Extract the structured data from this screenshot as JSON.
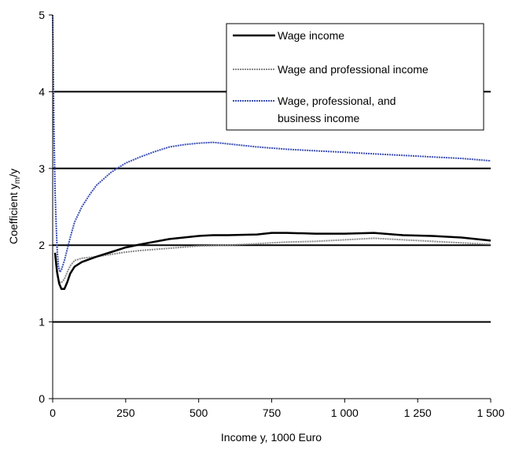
{
  "chart_data": {
    "type": "line",
    "xlabel": "Income y, 1000 Euro",
    "ylabel_main": "Coefficient y",
    "ylabel_sub": "m",
    "ylabel_tail": "/y",
    "xlim": [
      0,
      1500
    ],
    "ylim": [
      0,
      5
    ],
    "x_ticks": [
      0,
      250,
      500,
      750,
      1000,
      1250,
      1500
    ],
    "x_tick_labels": [
      "0",
      "250",
      "500",
      "750",
      "1 000",
      "1 250",
      "1 500"
    ],
    "y_ticks": [
      0,
      1,
      2,
      3,
      4,
      5
    ],
    "y_tick_labels": [
      "0",
      "1",
      "2",
      "3",
      "4",
      "5"
    ],
    "gridlines_y": [
      1,
      2,
      3,
      4
    ],
    "legend_position": "top-right",
    "series": [
      {
        "name": "Wage income",
        "color": "#000000",
        "x": [
          8,
          15,
          22,
          30,
          40,
          50,
          60,
          75,
          100,
          150,
          200,
          250,
          300,
          400,
          500,
          550,
          600,
          700,
          750,
          800,
          900,
          1000,
          1100,
          1200,
          1300,
          1400,
          1500
        ],
        "y": [
          1.9,
          1.65,
          1.5,
          1.43,
          1.43,
          1.52,
          1.63,
          1.72,
          1.78,
          1.85,
          1.91,
          1.97,
          2.01,
          2.08,
          2.12,
          2.13,
          2.13,
          2.14,
          2.16,
          2.16,
          2.15,
          2.15,
          2.16,
          2.13,
          2.12,
          2.1,
          2.06
        ]
      },
      {
        "name": "Wage and professional income",
        "color": "#888888",
        "x": [
          8,
          15,
          22,
          30,
          40,
          50,
          60,
          75,
          100,
          150,
          200,
          250,
          300,
          400,
          500,
          600,
          700,
          750,
          800,
          900,
          1000,
          1100,
          1200,
          1300,
          1400,
          1500
        ],
        "y": [
          1.85,
          1.62,
          1.52,
          1.51,
          1.56,
          1.65,
          1.73,
          1.8,
          1.83,
          1.85,
          1.88,
          1.91,
          1.93,
          1.96,
          1.99,
          2.0,
          2.02,
          2.03,
          2.04,
          2.05,
          2.07,
          2.09,
          2.07,
          2.05,
          2.03,
          2.01
        ]
      },
      {
        "name": "Wage, professional, and business income",
        "color": "#3c50b4",
        "x": [
          0,
          4,
          8,
          12,
          16,
          20,
          25,
          30,
          40,
          50,
          60,
          75,
          100,
          125,
          150,
          200,
          250,
          300,
          350,
          400,
          450,
          500,
          550,
          600,
          700,
          800,
          900,
          1000,
          1100,
          1200,
          1300,
          1400,
          1500
        ],
        "y": [
          5.0,
          3.6,
          2.7,
          2.25,
          1.9,
          1.72,
          1.65,
          1.68,
          1.8,
          1.95,
          2.1,
          2.3,
          2.5,
          2.65,
          2.78,
          2.95,
          3.07,
          3.15,
          3.22,
          3.28,
          3.31,
          3.33,
          3.34,
          3.32,
          3.28,
          3.25,
          3.23,
          3.21,
          3.19,
          3.17,
          3.15,
          3.13,
          3.1
        ]
      }
    ]
  }
}
